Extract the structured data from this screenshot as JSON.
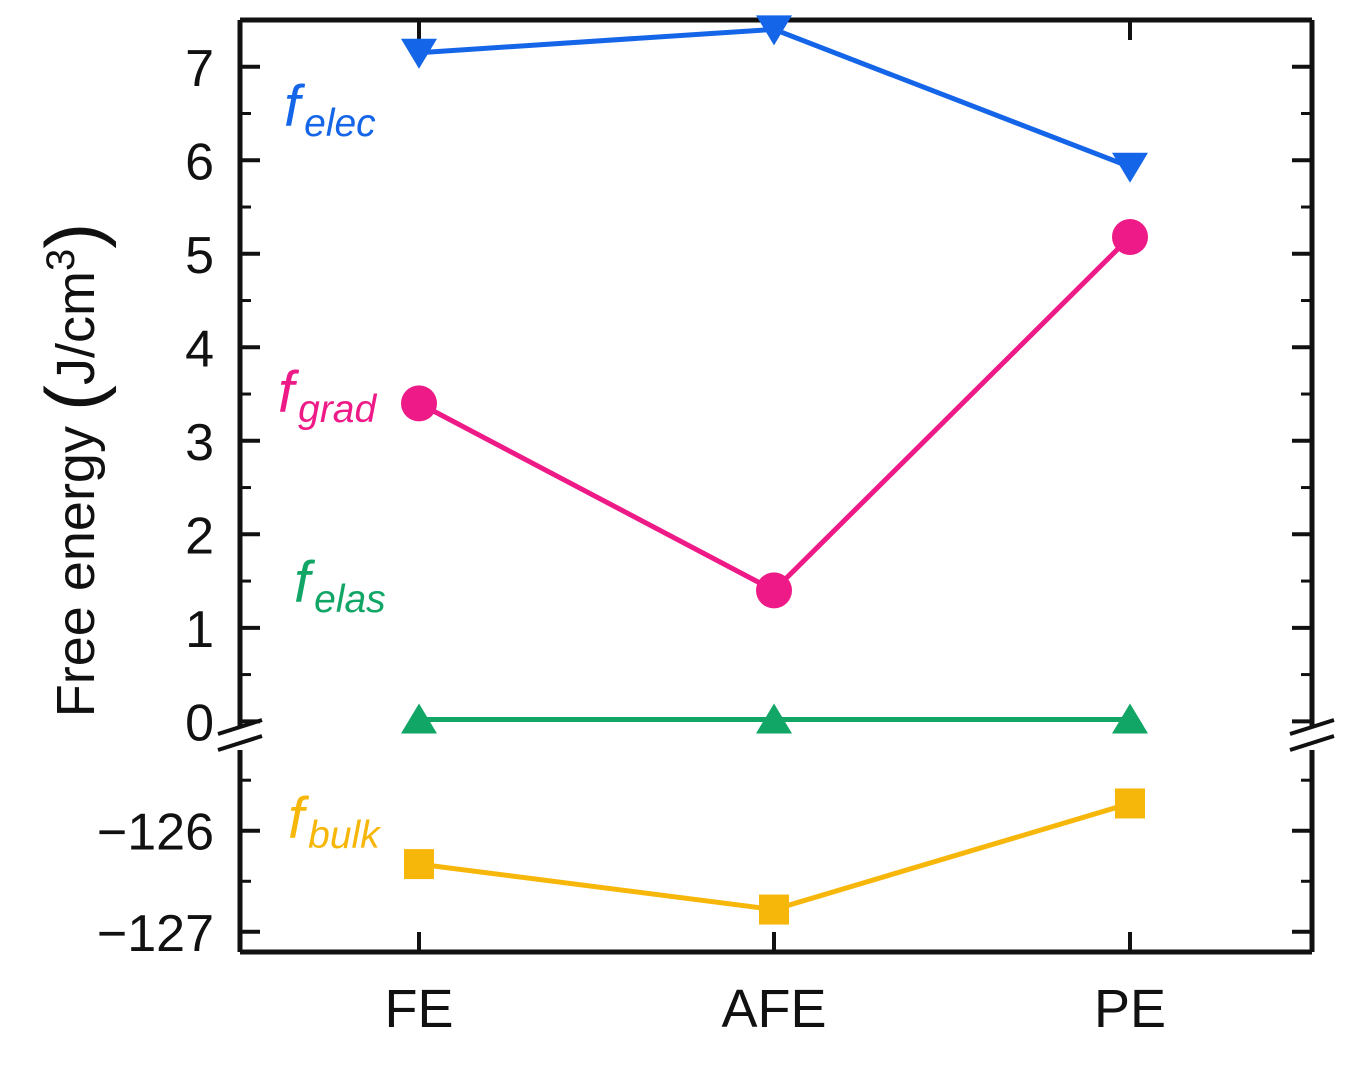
{
  "chart_data": {
    "type": "line",
    "categories": [
      "FE",
      "AFE",
      "PE"
    ],
    "ylabel": "Free energy",
    "ylabel_unit": "J/cm3",
    "axis_break": true,
    "upper_ylim": [
      -0.05,
      7.5
    ],
    "upper_yticks": [
      "0",
      "1",
      "2",
      "3",
      "4",
      "5",
      "6",
      "7"
    ],
    "lower_ylim": [
      -127.2,
      -125.3
    ],
    "lower_yticks": [
      "−126",
      "−127"
    ],
    "lower_ytick_values": [
      -126,
      -127
    ],
    "series": [
      {
        "name": "f",
        "sub": "elec",
        "color": "#1565E8",
        "marker": "triangle-down",
        "panel": "upper",
        "values": [
          7.15,
          7.4,
          5.93
        ]
      },
      {
        "name": "f",
        "sub": "grad",
        "color": "#EE1A87",
        "marker": "circle",
        "panel": "upper",
        "values": [
          3.4,
          1.4,
          5.18
        ]
      },
      {
        "name": "f",
        "sub": "elas",
        "color": "#11A566",
        "marker": "triangle-up",
        "panel": "upper",
        "values": [
          0.02,
          0.02,
          0.02
        ]
      },
      {
        "name": "f",
        "sub": "bulk",
        "color": "#F7B70A",
        "marker": "square",
        "panel": "lower",
        "values": [
          -126.33,
          -126.78,
          -125.73
        ]
      }
    ]
  }
}
